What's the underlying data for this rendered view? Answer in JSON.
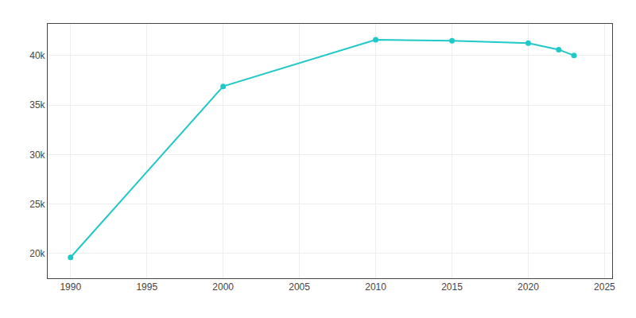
{
  "chart_data": {
    "type": "line",
    "x": [
      1990,
      2000,
      2010,
      2015,
      2020,
      2022,
      2023
    ],
    "values": [
      19605,
      36884,
      41588,
      41487,
      41258,
      40595,
      40000
    ],
    "color": "#20C8C8",
    "marker": "circle",
    "xlim": [
      1988.5,
      2025.5
    ],
    "xticks": [
      1990,
      1995,
      2000,
      2005,
      2010,
      2015,
      2020,
      2025
    ],
    "ylim": [
      17500,
      43200
    ],
    "yticks": [
      {
        "value": 20000,
        "label": "20k"
      },
      {
        "value": 25000,
        "label": "25k"
      },
      {
        "value": 30000,
        "label": "30k"
      },
      {
        "value": 35000,
        "label": "35k"
      },
      {
        "value": 40000,
        "label": "40k"
      }
    ],
    "grid": true
  }
}
